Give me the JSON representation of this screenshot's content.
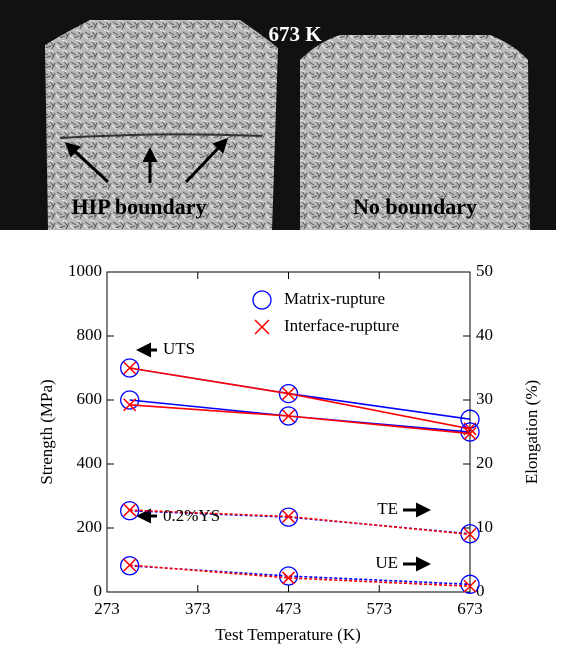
{
  "micrograph": {
    "temperature": "673 K",
    "left_label": "HIP boundary",
    "right_label": "No boundary"
  },
  "chart_data": {
    "type": "line",
    "x": [
      298,
      473,
      673
    ],
    "xlabel": "Test Temperature (K)",
    "ylabel": "Strength (MPa)",
    "y2label": "Elongation (%)",
    "xlim": [
      273,
      673
    ],
    "xticks": [
      273,
      373,
      473,
      573,
      673
    ],
    "ylim": [
      0,
      1000
    ],
    "yticks": [
      0,
      200,
      400,
      600,
      800,
      1000
    ],
    "y2lim": [
      0,
      50
    ],
    "y2ticks": [
      0,
      10,
      20,
      30,
      40,
      50
    ],
    "annotations": {
      "uts": "UTS",
      "ys": "0.2%YS",
      "te": "TE",
      "ue": "UE"
    },
    "series": [
      {
        "name": "Matrix-rupture",
        "color": "#0000ff",
        "marker": "circle",
        "uts": [
          700,
          620,
          540
        ],
        "ys": [
          600,
          550,
          500
        ],
        "te": [
          12.7,
          11.7,
          9.1
        ],
        "ue": [
          4.1,
          2.5,
          1.2
        ]
      },
      {
        "name": "Interface-rupture",
        "color": "#ff0000",
        "marker": "cross",
        "uts": [
          700,
          620,
          510
        ],
        "ys": [
          585,
          550,
          495
        ],
        "te": [
          12.8,
          11.8,
          9.0
        ],
        "ue": [
          4.2,
          2.2,
          0.9
        ]
      }
    ],
    "axes": {
      "uts": "y",
      "ys": "y",
      "te": "y2",
      "ue": "y2"
    },
    "legend": "upper-right"
  }
}
